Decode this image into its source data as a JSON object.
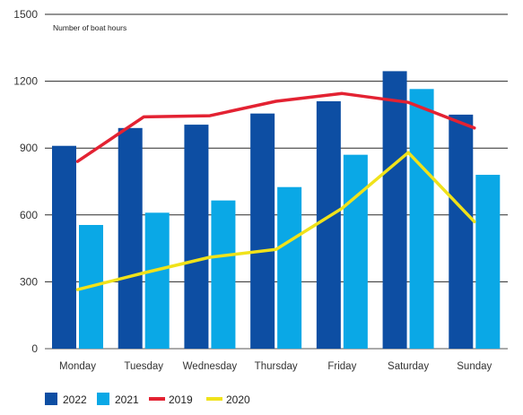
{
  "chart_data": {
    "type": "bar",
    "annotation": "Number of boat hours",
    "categories": [
      "Monday",
      "Tuesday",
      "Wednesday",
      "Thursday",
      "Friday",
      "Saturday",
      "Sunday"
    ],
    "ylim": [
      0,
      1500
    ],
    "yticks": [
      0,
      300,
      600,
      900,
      1200,
      1500
    ],
    "grid": true,
    "legend_position": "bottom-left",
    "series": [
      {
        "name": "2022",
        "kind": "bar",
        "color": "#0d4ea3",
        "values": [
          910,
          990,
          1005,
          1055,
          1110,
          1245,
          1050
        ]
      },
      {
        "name": "2021",
        "kind": "bar",
        "color": "#0aa8e6",
        "values": [
          555,
          610,
          665,
          725,
          870,
          1165,
          780
        ]
      },
      {
        "name": "2019",
        "kind": "line",
        "color": "#e32232",
        "values": [
          840,
          1040,
          1045,
          1110,
          1145,
          1105,
          990
        ]
      },
      {
        "name": "2020",
        "kind": "line",
        "color": "#f0e21a",
        "values": [
          265,
          340,
          410,
          445,
          630,
          880,
          570
        ]
      }
    ]
  }
}
